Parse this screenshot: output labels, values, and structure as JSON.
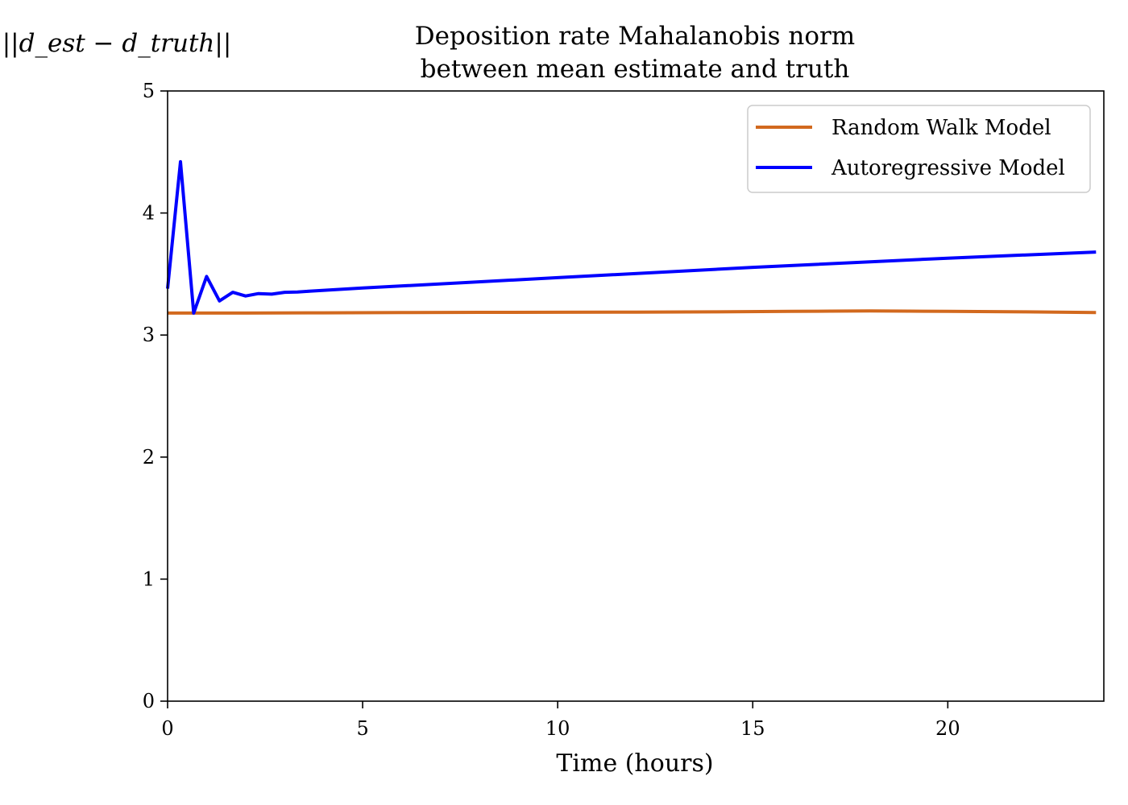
{
  "chart_data": {
    "type": "line",
    "title": "Deposition rate Mahalanobis norm",
    "subtitle": "between mean estimate and truth",
    "xlabel": "Time (hours)",
    "ylabel": "||d_est − d_truth||",
    "xlim": [
      0,
      24
    ],
    "ylim": [
      0,
      5
    ],
    "xticks": [
      0,
      5,
      10,
      15,
      20
    ],
    "yticks": [
      0,
      1,
      2,
      3,
      4,
      5
    ],
    "grid": false,
    "legend_position": "top-right",
    "series": [
      {
        "name": "Random Walk Model",
        "color": "#d2691e",
        "x": [
          0,
          2,
          4,
          6,
          8,
          10,
          12,
          14,
          16,
          17,
          18,
          19,
          20,
          22,
          23.8
        ],
        "values": [
          3.18,
          3.18,
          3.182,
          3.184,
          3.186,
          3.187,
          3.188,
          3.19,
          3.194,
          3.196,
          3.197,
          3.196,
          3.194,
          3.19,
          3.185
        ]
      },
      {
        "name": "Autoregressive Model",
        "color": "#0000ff",
        "x": [
          0,
          0.33,
          0.67,
          1.0,
          1.33,
          1.67,
          2.0,
          2.33,
          2.67,
          3.0,
          3.33,
          3.67,
          5,
          10,
          15,
          20,
          23.8
        ],
        "values": [
          3.38,
          4.42,
          3.18,
          3.48,
          3.28,
          3.35,
          3.32,
          3.34,
          3.335,
          3.35,
          3.352,
          3.36,
          3.385,
          3.47,
          3.555,
          3.63,
          3.68
        ]
      }
    ]
  }
}
